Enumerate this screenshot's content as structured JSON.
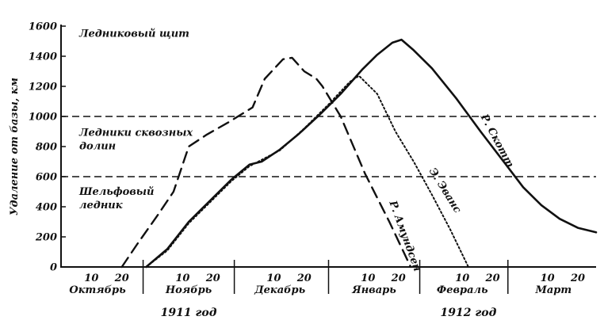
{
  "chart_data": {
    "type": "line",
    "ylabel": "Удаление от базы, км",
    "ylim": [
      0,
      1600
    ],
    "yticks": [
      0,
      200,
      400,
      600,
      800,
      1000,
      1200,
      1400,
      1600
    ],
    "xlim": [
      0,
      176
    ],
    "month_boundaries": [
      27,
      57,
      88,
      118,
      147
    ],
    "day_ticks": [
      {
        "label": "10",
        "x": 10
      },
      {
        "label": "20",
        "x": 20
      },
      {
        "label": "10",
        "x": 40
      },
      {
        "label": "20",
        "x": 50
      },
      {
        "label": "10",
        "x": 70
      },
      {
        "label": "20",
        "x": 80
      },
      {
        "label": "10",
        "x": 101
      },
      {
        "label": "20",
        "x": 111
      },
      {
        "label": "10",
        "x": 132
      },
      {
        "label": "20",
        "x": 142
      },
      {
        "label": "10",
        "x": 160
      },
      {
        "label": "20",
        "x": 170
      }
    ],
    "months": [
      {
        "label": "Октябрь",
        "x": 12
      },
      {
        "label": "Ноябрь",
        "x": 42
      },
      {
        "label": "Декабрь",
        "x": 72
      },
      {
        "label": "Январь",
        "x": 103
      },
      {
        "label": "Февраль",
        "x": 132
      },
      {
        "label": "Март",
        "x": 162
      }
    ],
    "years": [
      {
        "label": "1911 год",
        "x": 42
      },
      {
        "label": "1912 год",
        "x": 134
      }
    ],
    "thresholds": [
      1000,
      600
    ],
    "zones": [
      {
        "lines": [
          "Ледниковый щит"
        ],
        "y": 1530
      },
      {
        "lines": [
          "Ледники сквозных",
          "долин"
        ],
        "y": 870
      },
      {
        "lines": [
          "Шельфовый",
          "ледник"
        ],
        "y": 480
      }
    ],
    "series": [
      {
        "name": "Р. Амундсен",
        "style": "dashed",
        "points": [
          [
            20,
            0
          ],
          [
            25,
            150
          ],
          [
            32,
            350
          ],
          [
            37,
            500
          ],
          [
            42,
            800
          ],
          [
            48,
            880
          ],
          [
            55,
            960
          ],
          [
            63,
            1060
          ],
          [
            67,
            1250
          ],
          [
            73,
            1380
          ],
          [
            76,
            1390
          ],
          [
            80,
            1300
          ],
          [
            84,
            1250
          ],
          [
            86,
            1200
          ],
          [
            92,
            1000
          ],
          [
            100,
            620
          ],
          [
            108,
            300
          ],
          [
            115,
            0
          ]
        ]
      },
      {
        "name": "Р. Скотт",
        "style": "solid",
        "points": [
          [
            28,
            0
          ],
          [
            35,
            120
          ],
          [
            42,
            300
          ],
          [
            50,
            460
          ],
          [
            56,
            580
          ],
          [
            62,
            680
          ],
          [
            66,
            700
          ],
          [
            72,
            780
          ],
          [
            78,
            880
          ],
          [
            85,
            1010
          ],
          [
            92,
            1150
          ],
          [
            99,
            1310
          ],
          [
            104,
            1410
          ],
          [
            109,
            1490
          ],
          [
            112,
            1510
          ],
          [
            116,
            1440
          ],
          [
            122,
            1320
          ],
          [
            130,
            1120
          ],
          [
            138,
            900
          ],
          [
            146,
            690
          ],
          [
            152,
            530
          ],
          [
            158,
            410
          ],
          [
            164,
            320
          ],
          [
            170,
            260
          ],
          [
            176,
            230
          ]
        ]
      },
      {
        "name": "Э. Эванс",
        "style": "dotted",
        "points": [
          [
            28,
            0
          ],
          [
            35,
            110
          ],
          [
            42,
            290
          ],
          [
            50,
            450
          ],
          [
            56,
            570
          ],
          [
            62,
            670
          ],
          [
            72,
            775
          ],
          [
            80,
            920
          ],
          [
            88,
            1080
          ],
          [
            95,
            1230
          ],
          [
            98,
            1270
          ],
          [
            104,
            1150
          ],
          [
            110,
            900
          ],
          [
            116,
            700
          ],
          [
            122,
            480
          ],
          [
            128,
            250
          ],
          [
            134,
            0
          ]
        ]
      }
    ]
  }
}
